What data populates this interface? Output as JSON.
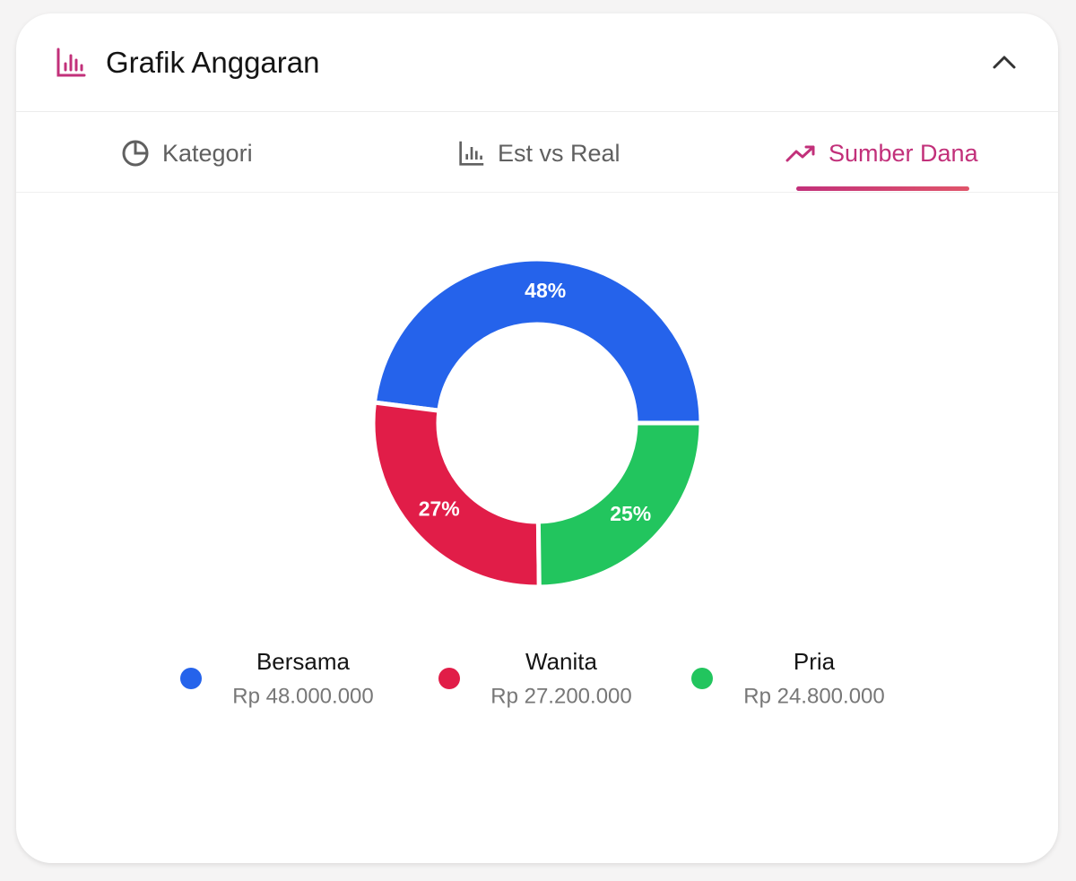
{
  "header": {
    "title": "Grafik Anggaran"
  },
  "tabs": [
    "Kategori",
    "Est vs Real",
    "Sumber Dana"
  ],
  "chart_data": {
    "type": "donut",
    "categories": [
      "Bersama",
      "Wanita",
      "Pria"
    ],
    "values": [
      48000000,
      27200000,
      24800000
    ],
    "value_labels": [
      "Rp 48.000.000",
      "Rp 27.200.000",
      "Rp 24.800.000"
    ],
    "percentages": [
      48,
      27,
      25
    ],
    "percentage_labels": [
      "48%",
      "27%",
      "25%"
    ],
    "colors": [
      "#2563eb",
      "#e11d48",
      "#22c55e"
    ]
  }
}
